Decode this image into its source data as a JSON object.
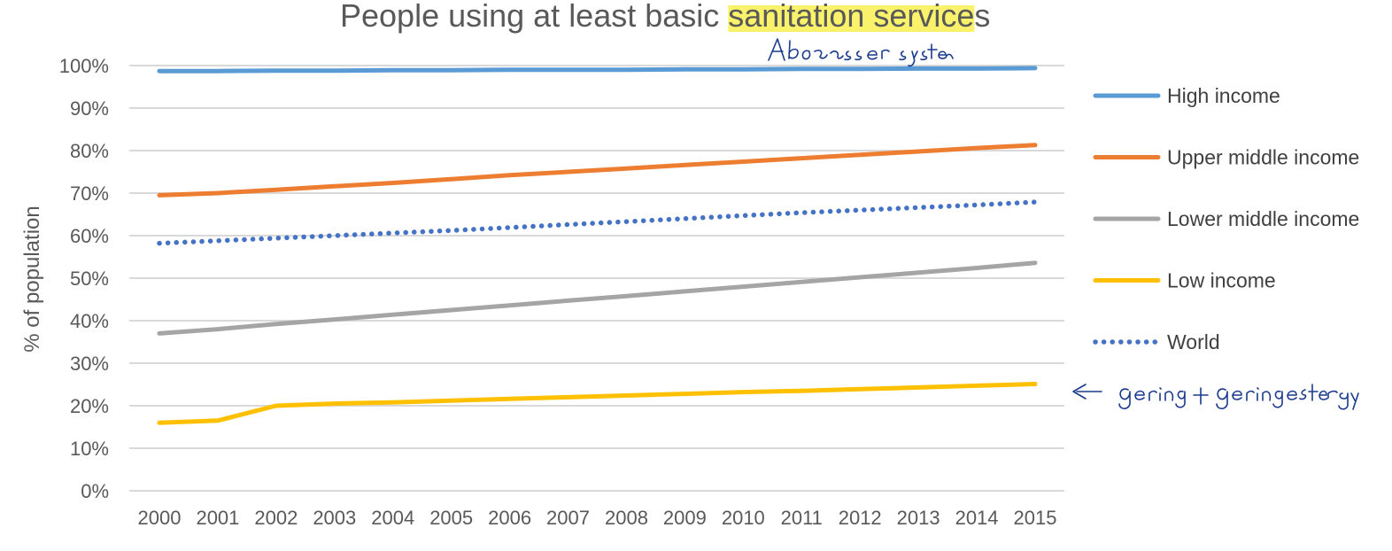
{
  "chart_data": {
    "type": "line",
    "title_prefix": "People using at least basic ",
    "title_highlight": "sanitation service",
    "title_suffix": "s",
    "highlight_color": "#fbf26b",
    "xlabel": "",
    "ylabel": "% of population",
    "ylim": [
      0,
      100
    ],
    "y_ticks": [
      "0%",
      "10%",
      "20%",
      "30%",
      "40%",
      "50%",
      "60%",
      "70%",
      "80%",
      "90%",
      "100%"
    ],
    "grid": true,
    "legend_position": "right",
    "x": [
      "2000",
      "2001",
      "2002",
      "2003",
      "2004",
      "2005",
      "2006",
      "2007",
      "2008",
      "2009",
      "2010",
      "2011",
      "2012",
      "2013",
      "2014",
      "2015"
    ],
    "series": [
      {
        "name": "High income",
        "color": "#5b9bd5",
        "style": "solid",
        "values": [
          98.7,
          98.7,
          98.8,
          98.8,
          98.9,
          98.9,
          99.0,
          99.0,
          99.0,
          99.1,
          99.1,
          99.2,
          99.2,
          99.3,
          99.3,
          99.4
        ]
      },
      {
        "name": "Upper middle income",
        "color": "#ed7d31",
        "style": "solid",
        "values": [
          69.5,
          70.0,
          70.8,
          71.6,
          72.4,
          73.3,
          74.2,
          75.0,
          75.8,
          76.6,
          77.4,
          78.2,
          79.0,
          79.8,
          80.6,
          81.3
        ]
      },
      {
        "name": "Lower middle income",
        "color": "#a5a5a5",
        "style": "solid",
        "values": [
          37.0,
          38.0,
          39.2,
          40.3,
          41.4,
          42.5,
          43.6,
          44.7,
          45.8,
          46.9,
          48.0,
          49.1,
          50.2,
          51.3,
          52.4,
          53.6
        ]
      },
      {
        "name": "Low income",
        "color": "#ffc000",
        "style": "solid",
        "values": [
          16.0,
          16.5,
          20.0,
          20.5,
          20.8,
          21.2,
          21.6,
          22.0,
          22.4,
          22.8,
          23.2,
          23.5,
          23.9,
          24.3,
          24.7,
          25.1
        ]
      },
      {
        "name": "World",
        "color": "#4472c4",
        "style": "dotted",
        "values": [
          58.2,
          58.8,
          59.4,
          60.0,
          60.6,
          61.2,
          61.9,
          62.6,
          63.3,
          64.0,
          64.7,
          65.4,
          66.0,
          66.6,
          67.2,
          67.9
        ]
      }
    ]
  },
  "annotations": {
    "top_handwritten": "Abwasser system",
    "right_handwritten": "<- gering + geringe Steigerung",
    "ink_color": "#1a3a8c"
  }
}
